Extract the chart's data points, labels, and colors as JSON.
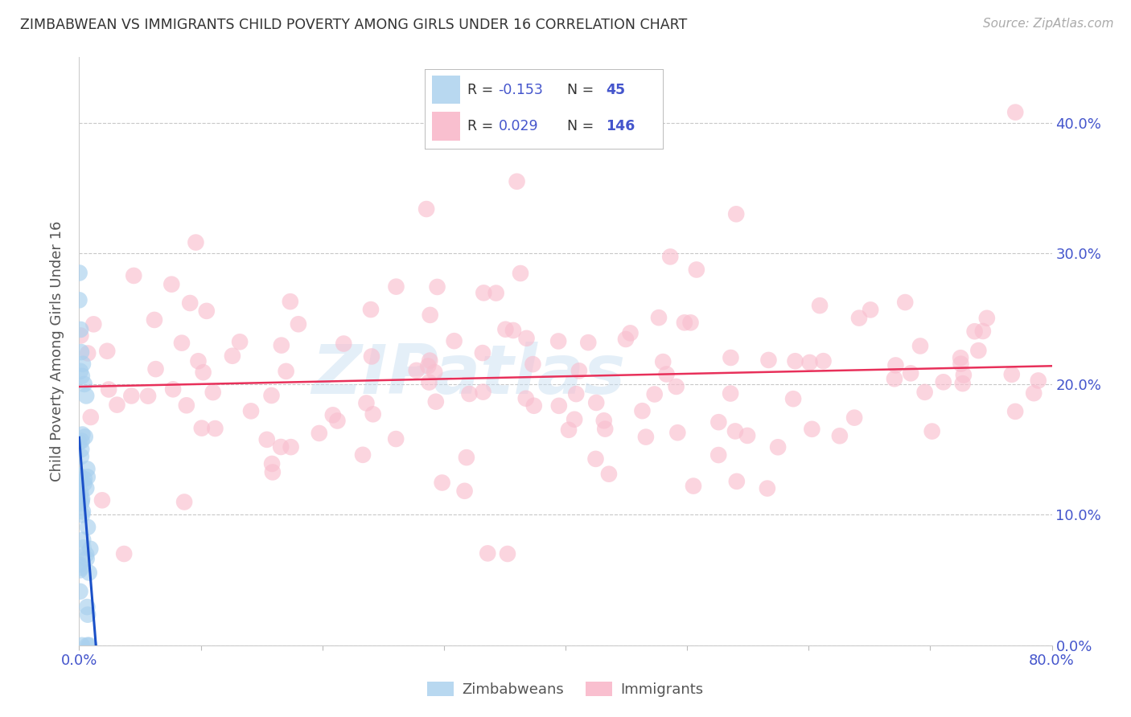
{
  "title": "ZIMBABWEAN VS IMMIGRANTS CHILD POVERTY AMONG GIRLS UNDER 16 CORRELATION CHART",
  "source": "Source: ZipAtlas.com",
  "ylabel": "Child Poverty Among Girls Under 16",
  "xlim": [
    0,
    0.8
  ],
  "ylim": [
    0,
    0.45
  ],
  "yticks": [
    0.0,
    0.1,
    0.2,
    0.3,
    0.4
  ],
  "yticklabels_right": [
    "0.0%",
    "10.0%",
    "20.0%",
    "30.0%",
    "40.0%"
  ],
  "xtick_positions": [
    0.0,
    0.1,
    0.2,
    0.3,
    0.4,
    0.5,
    0.6,
    0.7,
    0.8
  ],
  "watermark": "ZIPatlas",
  "zimbabwean_color": "#A8D0EE",
  "immigrant_color": "#F9BFCF",
  "zimbabwean_line_color": "#1A50C8",
  "immigrant_line_color": "#E8305A",
  "grid_color": "#C8C8C8",
  "background_color": "#FFFFFF",
  "axis_label_color": "#555555",
  "tick_label_color": "#4455CC",
  "dot_alpha": 0.65,
  "dot_size": 220,
  "legend_zim_color": "#B8D8F0",
  "legend_imm_color": "#F9BFCF",
  "legend_text_color": "#333333",
  "legend_num_color": "#4455CC",
  "zim_R": -0.153,
  "zim_N": 45,
  "imm_R": 0.029,
  "imm_N": 146
}
